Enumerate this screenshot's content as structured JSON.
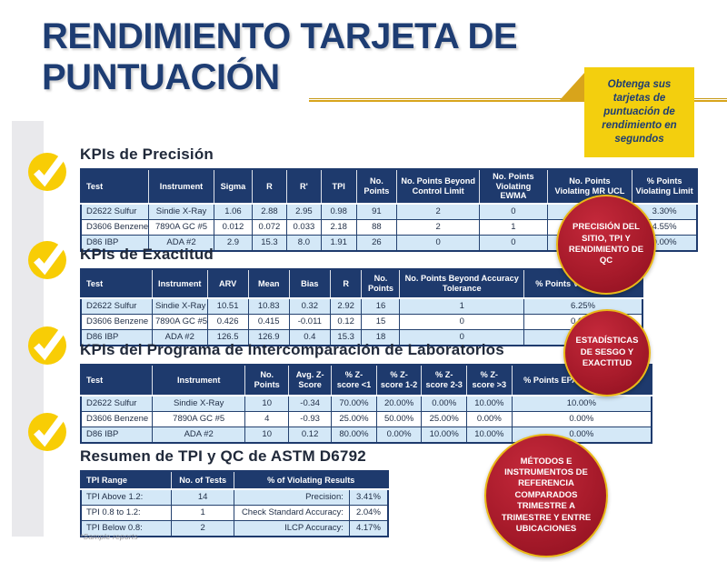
{
  "page": {
    "title_line1": "RENDIMIENTO TARJETA DE",
    "title_line2": "PUNTUACIÓN",
    "callout": "Obtenga sus tarjetas de puntuación de rendimiento en segundos",
    "footnote": "*Sample reports"
  },
  "sections": [
    {
      "heading": "KPIs de Precisión"
    },
    {
      "heading": "KPIs de Exactitud"
    },
    {
      "heading": "KPIs del Programa de Intercomparación de Laboratorios"
    },
    {
      "heading": "Resumen de TPI y QC de ASTM D6792"
    }
  ],
  "tables": {
    "precision": {
      "columns": [
        "Test",
        "Instrument",
        "Sigma",
        "R",
        "R'",
        "TPI",
        "No. Points",
        "No. Points Beyond Control Limit",
        "No. Points Violating EWMA",
        "No. Points Violating MR UCL",
        "% Points Violating Limit"
      ],
      "rows": [
        [
          "D2622 Sulfur",
          "Sindie X-Ray",
          "1.06",
          "2.88",
          "2.95",
          "0.98",
          "91",
          "2",
          "0",
          "",
          "3.30%"
        ],
        [
          "D3606 Benzene",
          "7890A GC #5",
          "0.012",
          "0.072",
          "0.033",
          "2.18",
          "88",
          "2",
          "1",
          "",
          "4.55%"
        ],
        [
          "D86 IBP",
          "ADA #2",
          "2.9",
          "15.3",
          "8.0",
          "1.91",
          "26",
          "0",
          "0",
          "",
          "0.00%"
        ]
      ]
    },
    "accuracy": {
      "columns": [
        "Test",
        "Instrument",
        "ARV",
        "Mean",
        "Bias",
        "R",
        "No. Points",
        "No. Points Beyond Accuracy Tolerance",
        "% Points Violating Limit"
      ],
      "rows": [
        [
          "D2622 Sulfur",
          "Sindie X-Ray",
          "10.51",
          "10.83",
          "0.32",
          "2.92",
          "16",
          "1",
          "6.25%"
        ],
        [
          "D3606 Benzene",
          "7890A GC #5",
          "0.426",
          "0.415",
          "-0.011",
          "0.12",
          "15",
          "0",
          "0.00%"
        ],
        [
          "D86 IBP",
          "ADA #2",
          "126.5",
          "126.9",
          "0.4",
          "15.3",
          "18",
          "0",
          ""
        ]
      ]
    },
    "ilcp": {
      "columns": [
        "Test",
        "Instrument",
        "No. Points",
        "Avg. Z-Score",
        "% Z-score <1",
        "% Z-score 1-2",
        "% Z-score 2-3",
        "% Z-score >3",
        "% Points EPA Accuracy Limit"
      ],
      "rows": [
        [
          "D2622 Sulfur",
          "Sindie X-Ray",
          "10",
          "-0.34",
          "70.00%",
          "20.00%",
          "0.00%",
          "10.00%",
          "10.00%"
        ],
        [
          "D3606 Benzene",
          "7890A GC #5",
          "4",
          "-0.93",
          "25.00%",
          "50.00%",
          "25.00%",
          "0.00%",
          "0.00%"
        ],
        [
          "D86 IBP",
          "ADA #2",
          "10",
          "0.12",
          "80.00%",
          "0.00%",
          "10.00%",
          "10.00%",
          "0.00%"
        ]
      ]
    },
    "summary": {
      "header_cells": [
        {
          "label": "TPI Range",
          "span": 1
        },
        {
          "label": "No. of Tests",
          "span": 1
        },
        {
          "label": "% of Violating Results",
          "span": 2
        }
      ],
      "rows": [
        [
          "TPI Above 1.2:",
          "14",
          "Precision:",
          "3.41%"
        ],
        [
          "TPI  0.8 to 1.2:",
          "1",
          "Check Standard Accuracy:",
          "2.04%"
        ],
        [
          "TPI Below 0.8:",
          "2",
          "ILCP Accuracy:",
          "4.17%"
        ]
      ]
    }
  },
  "badges": [
    {
      "text": "PRECISIÓN DEL SITIO, TPI Y RENDIMIENTO DE QC"
    },
    {
      "text": "ESTADÍSTICAS DE SESGO Y EXACTITUD"
    },
    {
      "text": "MÉTODOS E INSTRUMENTOS DE REFERENCIA COMPARADOS TRIMESTRE A TRIMESTRE Y ENTRE UBICACIONES"
    }
  ],
  "colors": {
    "navy": "#1e3d73",
    "table_header_navy": "#1e3a6d",
    "row_light_blue": "#d4e8f7",
    "accent_yellow": "#f3cf0e",
    "accent_gold": "#d8a41b",
    "badge_red": "#a81b2b"
  }
}
